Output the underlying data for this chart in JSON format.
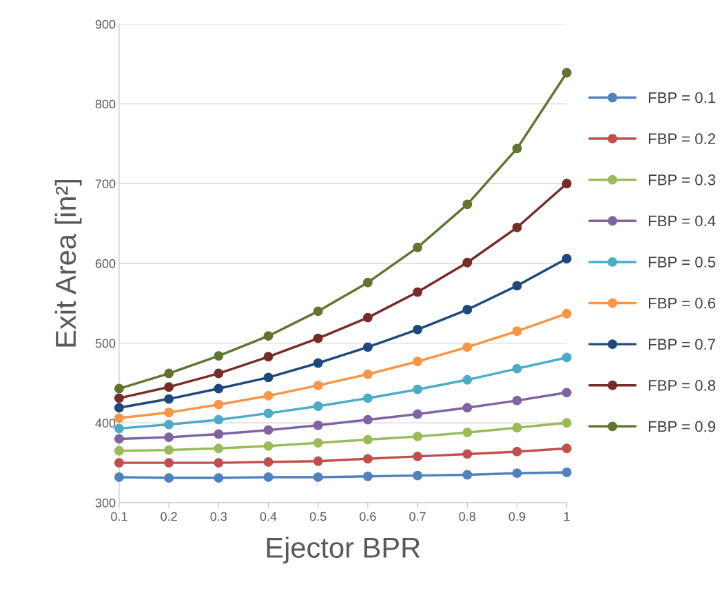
{
  "chart_data": {
    "type": "line",
    "xlabel": "Ejector BPR",
    "ylabel": "Exit Area [in²]",
    "x": [
      0.1,
      0.2,
      0.3,
      0.4,
      0.5,
      0.6,
      0.7,
      0.8,
      0.9,
      1
    ],
    "xlim": [
      0.1,
      1
    ],
    "xticks": [
      0.1,
      0.2,
      0.3,
      0.4,
      0.5,
      0.6,
      0.7,
      0.8,
      0.9,
      {
        "value": 1,
        "label": "1"
      }
    ],
    "ylim": [
      300,
      900
    ],
    "yticks": [
      300,
      400,
      500,
      600,
      700,
      800,
      900
    ],
    "grid": "y",
    "legend": "right",
    "marker": "circle",
    "line_style": "solid",
    "series": [
      {
        "name": "FBP = 0.1",
        "color": "#4f81bd",
        "values": [
          332,
          331,
          331,
          332,
          332,
          333,
          334,
          335,
          337,
          338
        ]
      },
      {
        "name": "FBP = 0.2",
        "color": "#c0504d",
        "values": [
          350,
          350,
          350,
          351,
          352,
          355,
          358,
          361,
          364,
          368
        ]
      },
      {
        "name": "FBP = 0.3",
        "color": "#9bbb59",
        "values": [
          365,
          366,
          368,
          371,
          375,
          379,
          383,
          388,
          394,
          400
        ]
      },
      {
        "name": "FBP = 0.4",
        "color": "#8064a2",
        "values": [
          380,
          382,
          386,
          391,
          397,
          404,
          411,
          419,
          428,
          438
        ]
      },
      {
        "name": "FBP = 0.5",
        "color": "#4bacc6",
        "values": [
          393,
          398,
          404,
          412,
          421,
          431,
          442,
          454,
          468,
          482
        ]
      },
      {
        "name": "FBP = 0.6",
        "color": "#f79646",
        "values": [
          406,
          413,
          423,
          434,
          447,
          461,
          477,
          495,
          515,
          537
        ]
      },
      {
        "name": "FBP = 0.7",
        "color": "#1f497d",
        "values": [
          419,
          430,
          443,
          457,
          475,
          495,
          517,
          542,
          572,
          606
        ]
      },
      {
        "name": "FBP = 0.8",
        "color": "#772c2a",
        "values": [
          431,
          445,
          462,
          483,
          506,
          532,
          564,
          601,
          645,
          700
        ]
      },
      {
        "name": "FBP = 0.9",
        "color": "#5f7530",
        "values": [
          443,
          462,
          484,
          509,
          540,
          576,
          620,
          674,
          744,
          839
        ]
      }
    ]
  }
}
